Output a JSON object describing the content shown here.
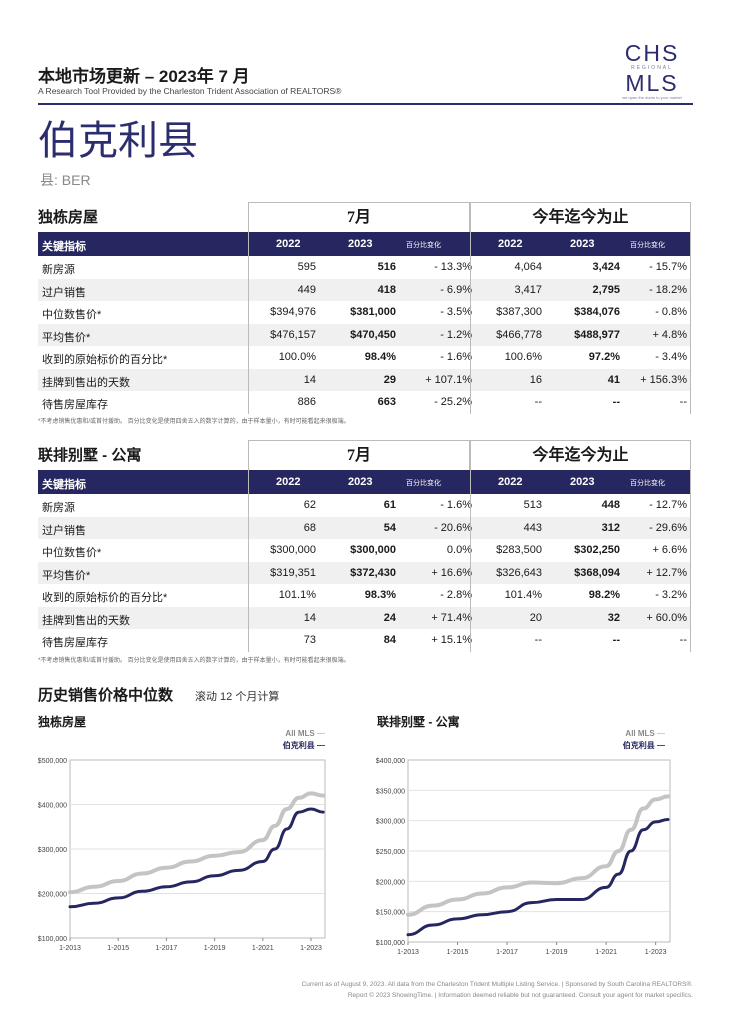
{
  "header": {
    "title": "本地市场更新 – 2023年 7 月",
    "subtitle": "A Research Tool Provided by the Charleston Trident Association of REALTORS®",
    "logo": {
      "line1": "CHS",
      "line2": "REGIONAL",
      "line3": "MLS",
      "tagline": "we open the doors to your market"
    }
  },
  "county": {
    "name": "伯克利县",
    "code": "县: BER"
  },
  "tables": [
    {
      "section": "独栋房屋",
      "period_month": "7月",
      "period_ytd": "今年迄今为止",
      "col_metric": "关键指标",
      "col_y1": "2022",
      "col_y2": "2023",
      "col_pct": "百分比变化",
      "rows": [
        {
          "label": "新房源",
          "m22": "595",
          "m23": "516",
          "mpct": "- 13.3%",
          "y22": "4,064",
          "y23": "3,424",
          "ypct": "- 15.7%"
        },
        {
          "label": "过户销售",
          "m22": "449",
          "m23": "418",
          "mpct": "- 6.9%",
          "y22": "3,417",
          "y23": "2,795",
          "ypct": "- 18.2%"
        },
        {
          "label": "中位数售价*",
          "m22": "$394,976",
          "m23": "$381,000",
          "mpct": "- 3.5%",
          "y22": "$387,300",
          "y23": "$384,076",
          "ypct": "- 0.8%"
        },
        {
          "label": "平均售价*",
          "m22": "$476,157",
          "m23": "$470,450",
          "mpct": "- 1.2%",
          "y22": "$466,778",
          "y23": "$488,977",
          "ypct": "+ 4.8%"
        },
        {
          "label": "收到的原始标价的百分比*",
          "m22": "100.0%",
          "m23": "98.4%",
          "mpct": "- 1.6%",
          "y22": "100.6%",
          "y23": "97.2%",
          "ypct": "- 3.4%"
        },
        {
          "label": "挂牌到售出的天数",
          "m22": "14",
          "m23": "29",
          "mpct": "+ 107.1%",
          "y22": "16",
          "y23": "41",
          "ypct": "+ 156.3%"
        },
        {
          "label": "待售房屋库存",
          "m22": "886",
          "m23": "663",
          "mpct": "- 25.2%",
          "y22": "--",
          "y23": "--",
          "ypct": "--"
        }
      ],
      "footnote": "*不考虑销售优惠和/或首付援助。 百分比变化是使用四舍五入的数字计算的，由于样本量小，有时可能看起来很极端。"
    },
    {
      "section": "联排别墅 - 公寓",
      "period_month": "7月",
      "period_ytd": "今年迄今为止",
      "col_metric": "关键指标",
      "col_y1": "2022",
      "col_y2": "2023",
      "col_pct": "百分比变化",
      "rows": [
        {
          "label": "新房源",
          "m22": "62",
          "m23": "61",
          "mpct": "- 1.6%",
          "y22": "513",
          "y23": "448",
          "ypct": "- 12.7%"
        },
        {
          "label": "过户销售",
          "m22": "68",
          "m23": "54",
          "mpct": "- 20.6%",
          "y22": "443",
          "y23": "312",
          "ypct": "- 29.6%"
        },
        {
          "label": "中位数售价*",
          "m22": "$300,000",
          "m23": "$300,000",
          "mpct": "0.0%",
          "y22": "$283,500",
          "y23": "$302,250",
          "ypct": "+ 6.6%"
        },
        {
          "label": "平均售价*",
          "m22": "$319,351",
          "m23": "$372,430",
          "mpct": "+ 16.6%",
          "y22": "$326,643",
          "y23": "$368,094",
          "ypct": "+ 12.7%"
        },
        {
          "label": "收到的原始标价的百分比*",
          "m22": "101.1%",
          "m23": "98.3%",
          "mpct": "- 2.8%",
          "y22": "101.4%",
          "y23": "98.2%",
          "ypct": "- 3.2%"
        },
        {
          "label": "挂牌到售出的天数",
          "m22": "14",
          "m23": "24",
          "mpct": "+ 71.4%",
          "y22": "20",
          "y23": "32",
          "ypct": "+ 60.0%"
        },
        {
          "label": "待售房屋库存",
          "m22": "73",
          "m23": "84",
          "mpct": "+ 15.1%",
          "y22": "--",
          "y23": "--",
          "ypct": "--"
        }
      ],
      "footnote": "*不考虑销售优惠和/或首付援助。 百分比变化是使用四舍五入的数字计算的，由于样本量小，有时可能看起来很极端。"
    }
  ],
  "history": {
    "title": "历史销售价格中位数",
    "subtitle": "滚动 12 个月计算"
  },
  "colors": {
    "navy": "#262760",
    "gray_line": "#c4c4c4"
  },
  "chart_data": [
    {
      "type": "line",
      "title": "独栋房屋",
      "legend": "top-right",
      "x_ticks": [
        "1-2013",
        "1-2015",
        "1-2017",
        "1-2019",
        "1-2021",
        "1-2023"
      ],
      "y_ticks": [
        "$500,000",
        "$400,000",
        "$300,000",
        "$200,000",
        "$100,000"
      ],
      "ylim": [
        100000,
        500000
      ],
      "x": [
        "1-2013",
        "1-2014",
        "1-2015",
        "1-2016",
        "1-2017",
        "1-2018",
        "1-2019",
        "1-2020",
        "1-2021",
        "7-2021",
        "1-2022",
        "7-2022",
        "1-2023",
        "7-2023"
      ],
      "series": [
        {
          "name": "All MLS",
          "values": [
            203000,
            215000,
            228000,
            245000,
            258000,
            272000,
            285000,
            293000,
            320000,
            352000,
            390000,
            415000,
            425000,
            420000
          ]
        },
        {
          "name": "伯克利县",
          "values": [
            170000,
            178000,
            190000,
            205000,
            215000,
            226000,
            240000,
            252000,
            272000,
            300000,
            345000,
            383000,
            390000,
            383000
          ]
        }
      ]
    },
    {
      "type": "line",
      "title": "联排别墅 - 公寓",
      "legend": "top-right",
      "x_ticks": [
        "1-2013",
        "1-2015",
        "1-2017",
        "1-2019",
        "1-2021",
        "1-2023"
      ],
      "y_ticks": [
        "$400,000",
        "$350,000",
        "$300,000",
        "$250,000",
        "$200,000",
        "$150,000",
        "$100,000"
      ],
      "ylim": [
        100000,
        400000
      ],
      "x": [
        "1-2013",
        "1-2014",
        "1-2015",
        "1-2016",
        "1-2017",
        "1-2018",
        "1-2019",
        "1-2020",
        "1-2021",
        "7-2021",
        "1-2022",
        "7-2022",
        "1-2023",
        "7-2023"
      ],
      "series": [
        {
          "name": "All MLS",
          "values": [
            145000,
            160000,
            170000,
            180000,
            190000,
            198000,
            197000,
            205000,
            225000,
            250000,
            285000,
            320000,
            335000,
            340000
          ]
        },
        {
          "name": "伯克利县",
          "values": [
            112000,
            128000,
            138000,
            145000,
            150000,
            165000,
            170000,
            170000,
            190000,
            212000,
            250000,
            285000,
            298000,
            302000
          ]
        }
      ]
    }
  ],
  "footer": {
    "line1": "Current as of August 9, 2023. All data from the Charleston Trident Multiple Listing Service. | Sponsored by South Carolina REALTORS®.",
    "line2": "Report © 2023 ShowingTime. | Information deemed reliable but not guaranteed. Consult your agent for market specifics."
  }
}
